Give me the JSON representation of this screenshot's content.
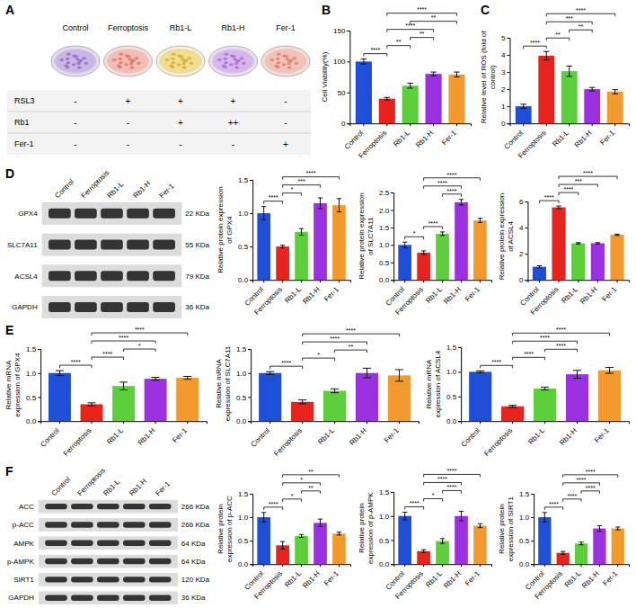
{
  "panel_labels": [
    "A",
    "B",
    "C",
    "D",
    "E",
    "F"
  ],
  "treatment_diagram": {
    "groups": [
      "Control",
      "Ferroptosis",
      "Rb1-L",
      "Rb1-H",
      "Fer-1"
    ],
    "rows": [
      {
        "label": "RSL3",
        "signs": [
          "-",
          "+",
          "+",
          "+",
          "-"
        ]
      },
      {
        "label": "Rb1",
        "signs": [
          "-",
          "-",
          "+",
          "++",
          "-"
        ]
      },
      {
        "label": "Fer-1",
        "signs": [
          "-",
          "-",
          "-",
          "-",
          "+"
        ]
      }
    ]
  },
  "blots": [
    {
      "lanes": [
        "Control",
        "Ferroptosis",
        "Rb1-L",
        "Rb1-H",
        "Fer-1"
      ],
      "proteins": [
        {
          "name": "GPX4",
          "size": "22 KDa"
        },
        {
          "name": "SLC7A11",
          "size": "55 KDa"
        },
        {
          "name": "ACSL4",
          "size": "79 KDa"
        },
        {
          "name": "GAPDH",
          "size": "36 KDa"
        }
      ]
    },
    {
      "lanes": [
        "Control",
        "Ferroptosis",
        "Rb1-L",
        "Rb1-H",
        "Fer-1"
      ],
      "proteins": [
        {
          "name": "ACC",
          "size": "266 KDa"
        },
        {
          "name": "p-ACC",
          "size": "266 KDa"
        },
        {
          "name": "AMPK",
          "size": "64 KDa"
        },
        {
          "name": "p-AMPK",
          "size": "64 KDa"
        },
        {
          "name": "SIRT1",
          "size": "120 KDa"
        },
        {
          "name": "GAPDH",
          "size": "36 KDa"
        }
      ]
    }
  ],
  "chart_data": [
    {
      "type": "bar",
      "y_label": "Cell Viability(%)",
      "categories": [
        "Control",
        "Ferroptosis",
        "Rb1-L",
        "Rb1-H",
        "Fer-1"
      ],
      "values": [
        100,
        40,
        61,
        80,
        79
      ],
      "errors": [
        4,
        2,
        4,
        3,
        4
      ],
      "colors": [
        "#1f4fd8",
        "#e8231d",
        "#5ccf3a",
        "#9b30e0",
        "#f29a2e"
      ],
      "ylim": [
        0,
        150
      ],
      "yticks": [
        0,
        50,
        100,
        150
      ],
      "annotations": [
        {
          "groups": [
            "Control",
            "Ferroptosis"
          ],
          "label": "****"
        },
        {
          "groups": [
            "Ferroptosis",
            "Rb1-L"
          ],
          "label": "**"
        },
        {
          "groups": [
            "Ferroptosis",
            "Rb1-H"
          ],
          "label": "****"
        },
        {
          "groups": [
            "Ferroptosis",
            "Fer-1"
          ],
          "label": "****"
        },
        {
          "groups": [
            "Rb1-L",
            "Rb1-H"
          ],
          "label": "**"
        },
        {
          "groups": [
            "Rb1-L",
            "Fer-1"
          ],
          "label": "**"
        }
      ]
    },
    {
      "type": "bar",
      "y_label": "Relative level of ROS (fold of control)",
      "categories": [
        "Control",
        "Ferroptosis",
        "Rb1-L",
        "Rb1-H",
        "Fer-1"
      ],
      "values": [
        1.0,
        3.95,
        3.05,
        2.0,
        1.85
      ],
      "errors": [
        0.12,
        0.25,
        0.3,
        0.1,
        0.12
      ],
      "colors": [
        "#1f4fd8",
        "#e8231d",
        "#5ccf3a",
        "#9b30e0",
        "#f29a2e"
      ],
      "ylim": [
        0,
        5
      ],
      "yticks": [
        0,
        1,
        2,
        3,
        4,
        5
      ],
      "annotations": [
        {
          "groups": [
            "Control",
            "Ferroptosis"
          ],
          "label": "****"
        },
        {
          "groups": [
            "Ferroptosis",
            "Rb1-L"
          ],
          "label": "**"
        },
        {
          "groups": [
            "Ferroptosis",
            "Rb1-H"
          ],
          "label": "***"
        },
        {
          "groups": [
            "Ferroptosis",
            "Fer-1"
          ],
          "label": "****"
        },
        {
          "groups": [
            "Rb1-L",
            "Rb1-H"
          ],
          "label": "**"
        }
      ]
    },
    {
      "type": "bar",
      "y_label": "Relative protein expression of GPX4",
      "categories": [
        "Control",
        "Ferroptosis",
        "Rb1-L",
        "Rb1-H",
        "Fer-1"
      ],
      "values": [
        1.0,
        0.5,
        0.72,
        1.15,
        1.12
      ],
      "errors": [
        0.1,
        0.02,
        0.05,
        0.08,
        0.1
      ],
      "colors": [
        "#1f4fd8",
        "#e8231d",
        "#5ccf3a",
        "#9b30e0",
        "#f29a2e"
      ],
      "ylim": [
        0,
        1.5
      ],
      "yticks": [
        {
          "value": 0,
          "label": "0.0"
        },
        {
          "value": 0.5,
          "label": "0.5"
        },
        {
          "value": 1,
          "label": "1.0"
        },
        {
          "value": 1.5,
          "label": "1.5"
        }
      ],
      "annotations": [
        {
          "groups": [
            "Control",
            "Ferroptosis"
          ],
          "label": "****"
        },
        {
          "groups": [
            "Ferroptosis",
            "Rb1-L"
          ],
          "label": "*"
        },
        {
          "groups": [
            "Ferroptosis",
            "Rb1-H"
          ],
          "label": "***"
        },
        {
          "groups": [
            "Ferroptosis",
            "Fer-1"
          ],
          "label": "****"
        }
      ]
    },
    {
      "type": "bar",
      "y_label": "Relative protein expression of SLC7A11",
      "categories": [
        "Control",
        "Ferroptosis",
        "Rb1-L",
        "Rb1-H",
        "Fer-1"
      ],
      "values": [
        1.0,
        0.78,
        1.32,
        2.22,
        1.7
      ],
      "errors": [
        0.08,
        0.05,
        0.05,
        0.08,
        0.06
      ],
      "colors": [
        "#1f4fd8",
        "#e8231d",
        "#5ccf3a",
        "#9b30e0",
        "#f29a2e"
      ],
      "ylim": [
        0,
        2.5
      ],
      "yticks": [
        {
          "value": 0,
          "label": "0.0"
        },
        {
          "value": 0.5,
          "label": "0.5"
        },
        {
          "value": 1,
          "label": "1.0"
        },
        {
          "value": 1.5,
          "label": "1.5"
        },
        {
          "value": 2,
          "label": "2.0"
        },
        {
          "value": 2.5,
          "label": "2.5"
        }
      ],
      "annotations": [
        {
          "groups": [
            "Control",
            "Ferroptosis"
          ],
          "label": "*"
        },
        {
          "groups": [
            "Ferroptosis",
            "Rb1-L"
          ],
          "label": "****"
        },
        {
          "groups": [
            "Ferroptosis",
            "Rb1-H"
          ],
          "label": "****"
        },
        {
          "groups": [
            "Ferroptosis",
            "Fer-1"
          ],
          "label": "****"
        },
        {
          "groups": [
            "Rb1-L",
            "Rb1-H"
          ],
          "label": "****"
        }
      ]
    },
    {
      "type": "bar",
      "y_label": "Relative protein expression of ACSL4",
      "categories": [
        "Control",
        "Ferroptosis",
        "Rb1-L",
        "Rb1-H",
        "Fer-1"
      ],
      "values": [
        1.0,
        5.55,
        2.8,
        2.8,
        3.45
      ],
      "errors": [
        0.08,
        0.1,
        0.05,
        0.05,
        0.05
      ],
      "colors": [
        "#1f4fd8",
        "#e8231d",
        "#5ccf3a",
        "#9b30e0",
        "#f29a2e"
      ],
      "ylim": [
        0,
        6
      ],
      "yticks": [
        0,
        2,
        4,
        6
      ],
      "annotations": [
        {
          "groups": [
            "Control",
            "Ferroptosis"
          ],
          "label": "****"
        },
        {
          "groups": [
            "Ferroptosis",
            "Rb1-L"
          ],
          "label": "****"
        },
        {
          "groups": [
            "Ferroptosis",
            "Rb1-H"
          ],
          "label": "***"
        },
        {
          "groups": [
            "Ferroptosis",
            "Fer-1"
          ],
          "label": "****"
        }
      ]
    },
    {
      "type": "bar",
      "y_label": "Relative mRNA expression of GPX4",
      "categories": [
        "Control",
        "Ferroptosis",
        "Rb1-L",
        "Rb1-H",
        "Fer-1"
      ],
      "values": [
        1.0,
        0.35,
        0.73,
        0.88,
        0.9
      ],
      "errors": [
        0.05,
        0.03,
        0.08,
        0.03,
        0.03
      ],
      "colors": [
        "#1f4fd8",
        "#e8231d",
        "#5ccf3a",
        "#9b30e0",
        "#f29a2e"
      ],
      "ylim": [
        0,
        1.5
      ],
      "yticks": [
        {
          "value": 0,
          "label": "0.0"
        },
        {
          "value": 0.5,
          "label": "0.5"
        },
        {
          "value": 1,
          "label": "1.0"
        },
        {
          "value": 1.5,
          "label": "1.5"
        }
      ],
      "annotations": [
        {
          "groups": [
            "Control",
            "Ferroptosis"
          ],
          "label": "****"
        },
        {
          "groups": [
            "Ferroptosis",
            "Rb1-L"
          ],
          "label": "****"
        },
        {
          "groups": [
            "Ferroptosis",
            "Rb1-H"
          ],
          "label": "****"
        },
        {
          "groups": [
            "Ferroptosis",
            "Fer-1"
          ],
          "label": "****"
        },
        {
          "groups": [
            "Rb1-L",
            "Rb1-H"
          ],
          "label": "*"
        }
      ]
    },
    {
      "type": "bar",
      "y_label": "Relative mRNA expression of SLC7A11",
      "categories": [
        "Control",
        "Ferroptosis",
        "Rb1-L",
        "Rb1-H",
        "Fer-1"
      ],
      "values": [
        1.0,
        0.4,
        0.63,
        1.0,
        0.95
      ],
      "errors": [
        0.03,
        0.04,
        0.04,
        0.1,
        0.12
      ],
      "colors": [
        "#1f4fd8",
        "#e8231d",
        "#5ccf3a",
        "#9b30e0",
        "#f29a2e"
      ],
      "ylim": [
        0,
        1.5
      ],
      "yticks": [
        {
          "value": 0,
          "label": "0.0"
        },
        {
          "value": 0.5,
          "label": "0.5"
        },
        {
          "value": 1,
          "label": "1.0"
        },
        {
          "value": 1.5,
          "label": "1.5"
        }
      ],
      "annotations": [
        {
          "groups": [
            "Control",
            "Ferroptosis"
          ],
          "label": "****"
        },
        {
          "groups": [
            "Ferroptosis",
            "Rb1-L"
          ],
          "label": "*"
        },
        {
          "groups": [
            "Ferroptosis",
            "Rb1-H"
          ],
          "label": "****"
        },
        {
          "groups": [
            "Ferroptosis",
            "Fer-1"
          ],
          "label": "****"
        },
        {
          "groups": [
            "Rb1-L",
            "Rb1-H"
          ],
          "label": "**"
        }
      ]
    },
    {
      "type": "bar",
      "y_label": "Relative mRNA expression of ACSL4",
      "categories": [
        "Control",
        "Ferroptosis",
        "Rb1-L",
        "Rb1-H",
        "Fer-1"
      ],
      "values": [
        1.0,
        0.3,
        0.66,
        0.95,
        1.03
      ],
      "errors": [
        0.02,
        0.02,
        0.03,
        0.08,
        0.06
      ],
      "colors": [
        "#1f4fd8",
        "#e8231d",
        "#5ccf3a",
        "#9b30e0",
        "#f29a2e"
      ],
      "ylim": [
        0,
        1.5
      ],
      "yticks": [
        {
          "value": 0,
          "label": "0.0"
        },
        {
          "value": 0.5,
          "label": "0.5"
        },
        {
          "value": 1,
          "label": "1.0"
        },
        {
          "value": 1.5,
          "label": "1.5"
        }
      ],
      "annotations": [
        {
          "groups": [
            "Control",
            "Ferroptosis"
          ],
          "label": "****"
        },
        {
          "groups": [
            "Ferroptosis",
            "Rb1-L"
          ],
          "label": "****"
        },
        {
          "groups": [
            "Ferroptosis",
            "Rb1-H"
          ],
          "label": "****"
        },
        {
          "groups": [
            "Ferroptosis",
            "Fer-1"
          ],
          "label": "****"
        },
        {
          "groups": [
            "Rb1-L",
            "Rb1-H"
          ],
          "label": "****"
        }
      ]
    },
    {
      "type": "bar",
      "y_label": "Relative protein expression of p-ACC",
      "categories": [
        "Control",
        "Ferroptosis",
        "Rb1-L",
        "Rb1-H",
        "Fer-1"
      ],
      "values": [
        1.0,
        0.4,
        0.6,
        0.88,
        0.65
      ],
      "errors": [
        0.1,
        0.08,
        0.03,
        0.08,
        0.03
      ],
      "colors": [
        "#1f4fd8",
        "#e8231d",
        "#5ccf3a",
        "#9b30e0",
        "#f29a2e"
      ],
      "ylim": [
        0,
        1.5
      ],
      "yticks": [
        {
          "value": 0,
          "label": "0.0"
        },
        {
          "value": 0.5,
          "label": "0.5"
        },
        {
          "value": 1,
          "label": "1.0"
        },
        {
          "value": 1.5,
          "label": "1.5"
        }
      ],
      "annotations": [
        {
          "groups": [
            "Control",
            "Ferroptosis"
          ],
          "label": "****"
        },
        {
          "groups": [
            "Ferroptosis",
            "Rb1-L"
          ],
          "label": "*"
        },
        {
          "groups": [
            "Ferroptosis",
            "Rb1-H"
          ],
          "label": "*"
        },
        {
          "groups": [
            "Ferroptosis",
            "Fer-1"
          ],
          "label": "**"
        },
        {
          "groups": [
            "Rb1-L",
            "Rb1-H"
          ],
          "label": "**"
        }
      ]
    },
    {
      "type": "bar",
      "y_label": "Relative protein expression of p-AMPK",
      "categories": [
        "Control",
        "Ferroptosis",
        "Rb1-L",
        "Rb1-H",
        "Fer-1"
      ],
      "values": [
        1.0,
        0.27,
        0.48,
        1.0,
        0.8
      ],
      "errors": [
        0.08,
        0.03,
        0.05,
        0.1,
        0.04
      ],
      "colors": [
        "#1f4fd8",
        "#e8231d",
        "#5ccf3a",
        "#9b30e0",
        "#f29a2e"
      ],
      "ylim": [
        0,
        1.5
      ],
      "yticks": [
        {
          "value": 0,
          "label": "0.0"
        },
        {
          "value": 0.5,
          "label": "0.5"
        },
        {
          "value": 1,
          "label": "1.0"
        },
        {
          "value": 1.5,
          "label": "1.5"
        }
      ],
      "annotations": [
        {
          "groups": [
            "Control",
            "Ferroptosis"
          ],
          "label": "****"
        },
        {
          "groups": [
            "Ferroptosis",
            "Rb1-L"
          ],
          "label": "*"
        },
        {
          "groups": [
            "Ferroptosis",
            "Rb1-H"
          ],
          "label": "****"
        },
        {
          "groups": [
            "Ferroptosis",
            "Fer-1"
          ],
          "label": "****"
        },
        {
          "groups": [
            "Rb1-L",
            "Rb1-H"
          ],
          "label": "****"
        }
      ]
    },
    {
      "type": "bar",
      "y_label": "Relative protein expression of SIRT1",
      "categories": [
        "Control",
        "Ferroptosis",
        "Rb1-L",
        "Rb1-H",
        "Fer-1"
      ],
      "values": [
        1.0,
        0.24,
        0.44,
        0.76,
        0.76
      ],
      "errors": [
        0.1,
        0.03,
        0.03,
        0.06,
        0.03
      ],
      "colors": [
        "#1f4fd8",
        "#e8231d",
        "#5ccf3a",
        "#9b30e0",
        "#f29a2e"
      ],
      "ylim": [
        0,
        1.5
      ],
      "yticks": [
        {
          "value": 0,
          "label": "0.0"
        },
        {
          "value": 0.5,
          "label": "0.5"
        },
        {
          "value": 1,
          "label": "1.0"
        },
        {
          "value": 1.5,
          "label": "1.5"
        }
      ],
      "annotations": [
        {
          "groups": [
            "Control",
            "Ferroptosis"
          ],
          "label": "****"
        },
        {
          "groups": [
            "Ferroptosis",
            "Rb1-L"
          ],
          "label": "****"
        },
        {
          "groups": [
            "Ferroptosis",
            "Rb1-H"
          ],
          "label": "****"
        },
        {
          "groups": [
            "Ferroptosis",
            "Fer-1"
          ],
          "label": "****"
        },
        {
          "groups": [
            "Rb1-L",
            "Rb1-H"
          ],
          "label": "****"
        }
      ]
    }
  ]
}
